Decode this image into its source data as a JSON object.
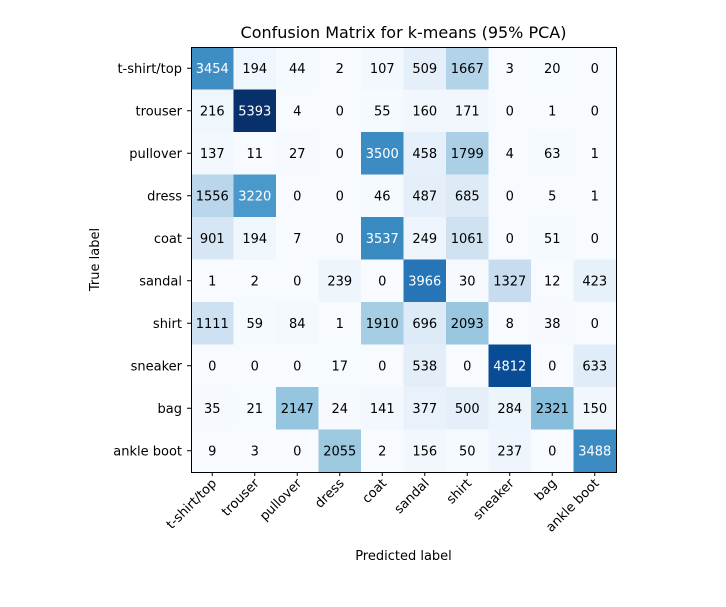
{
  "chart_data": {
    "type": "heatmap",
    "title": "Confusion Matrix for k-means (95% PCA)",
    "xlabel": "Predicted label",
    "ylabel": "True label",
    "x_categories": [
      "t-shirt/top",
      "trouser",
      "pullover",
      "dress",
      "coat",
      "sandal",
      "shirt",
      "sneaker",
      "bag",
      "ankle boot"
    ],
    "y_categories": [
      "t-shirt/top",
      "trouser",
      "pullover",
      "dress",
      "coat",
      "sandal",
      "shirt",
      "sneaker",
      "bag",
      "ankle boot"
    ],
    "values": [
      [
        3454,
        194,
        44,
        2,
        107,
        509,
        1667,
        3,
        20,
        0
      ],
      [
        216,
        5393,
        4,
        0,
        55,
        160,
        171,
        0,
        1,
        0
      ],
      [
        137,
        11,
        27,
        0,
        3500,
        458,
        1799,
        4,
        63,
        1
      ],
      [
        1556,
        3220,
        0,
        0,
        46,
        487,
        685,
        0,
        5,
        1
      ],
      [
        901,
        194,
        7,
        0,
        3537,
        249,
        1061,
        0,
        51,
        0
      ],
      [
        1,
        2,
        0,
        239,
        0,
        3966,
        30,
        1327,
        12,
        423
      ],
      [
        1111,
        59,
        84,
        1,
        1910,
        696,
        2093,
        8,
        38,
        0
      ],
      [
        0,
        0,
        0,
        17,
        0,
        538,
        0,
        4812,
        0,
        633
      ],
      [
        35,
        21,
        2147,
        24,
        141,
        377,
        500,
        284,
        2321,
        150
      ],
      [
        9,
        3,
        0,
        2055,
        2,
        156,
        50,
        237,
        0,
        3488
      ]
    ],
    "colormap": "Blues",
    "x_tick_rotation": 45,
    "grid": false,
    "legend": "none"
  }
}
